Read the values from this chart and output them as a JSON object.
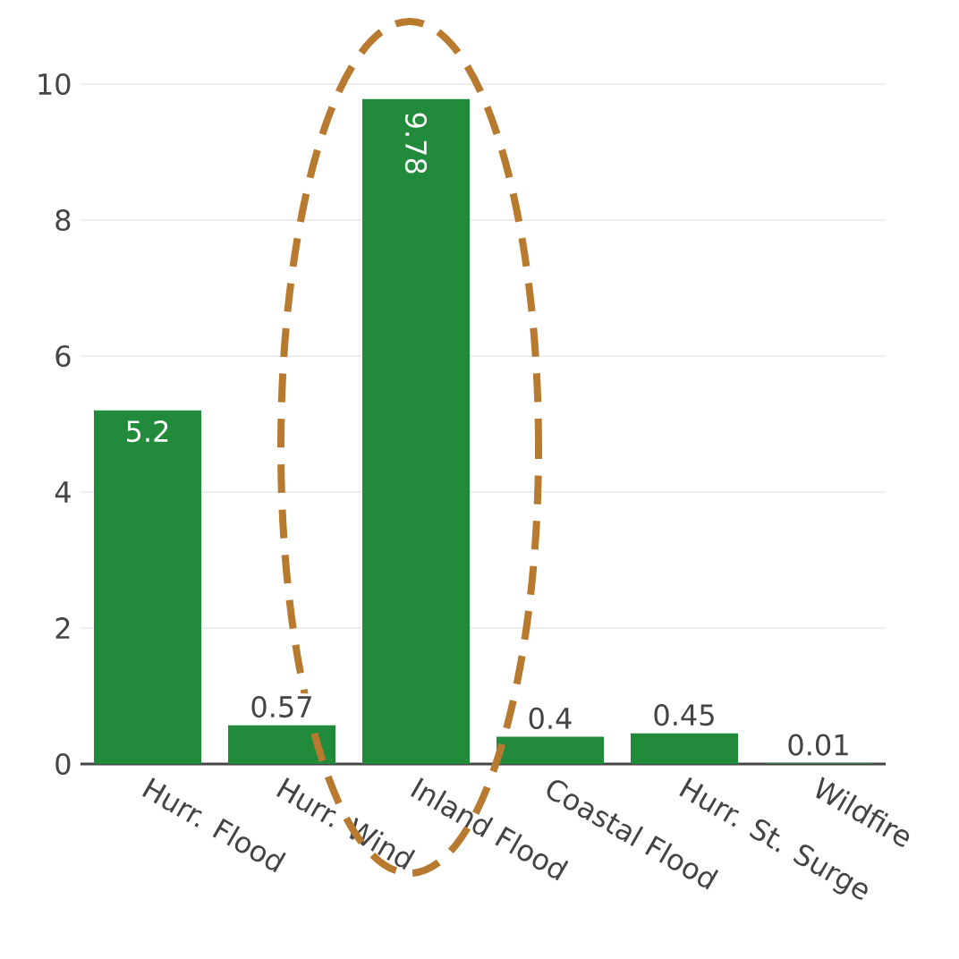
{
  "chart_data": {
    "type": "bar",
    "categories": [
      "Hurr. Flood",
      "Hurr. Wind",
      "Inland Flood",
      "Coastal Flood",
      "Hurr. St. Surge",
      "Wildfire"
    ],
    "values": [
      5.2,
      0.57,
      9.78,
      0.4,
      0.45,
      0.01
    ],
    "color": "#228b3b",
    "ylim": [
      0,
      10
    ],
    "yticks": [
      0,
      2,
      4,
      6,
      8,
      10
    ],
    "grid": "y",
    "data_labels": true
  }
}
